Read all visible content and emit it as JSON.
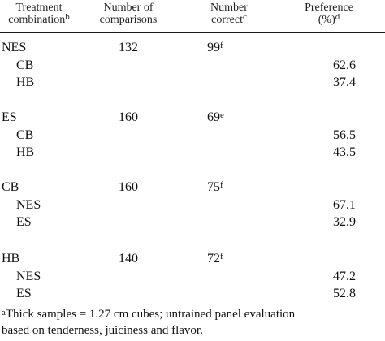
{
  "headers": {
    "treatment_line1": "Treatment",
    "treatment_line2": "combination",
    "treatment_sup": "b",
    "comparisons_line1": "Number of",
    "comparisons_line2": "comparisons",
    "correct_line1": "Number",
    "correct_line2": "correct",
    "correct_sup": "c",
    "preference_line1": "Preference",
    "preference_line2": "(%)",
    "preference_sup": "d"
  },
  "groups": [
    {
      "name": "NES",
      "comparisons": "132",
      "correct": "99",
      "correct_sup": "f",
      "rows": [
        {
          "name": "CB",
          "preference": "62.6"
        },
        {
          "name": "HB",
          "preference": "37.4"
        }
      ]
    },
    {
      "name": "ES",
      "comparisons": "160",
      "correct": "69",
      "correct_sup": "e",
      "rows": [
        {
          "name": "CB",
          "preference": "56.5"
        },
        {
          "name": "HB",
          "preference": "43.5"
        }
      ]
    },
    {
      "name": "CB",
      "comparisons": "160",
      "correct": "75",
      "correct_sup": "f",
      "rows": [
        {
          "name": "NES",
          "preference": "67.1"
        },
        {
          "name": "ES",
          "preference": "32.9"
        }
      ]
    },
    {
      "name": "HB",
      "comparisons": "140",
      "correct": "72",
      "correct_sup": "f",
      "rows": [
        {
          "name": "NES",
          "preference": "47.2"
        },
        {
          "name": "ES",
          "preference": "52.8"
        }
      ]
    }
  ],
  "footnote": {
    "marker": "a",
    "line1": "Thick samples = 1.27 cm cubes; untrained panel evaluation",
    "line2": "based on tenderness, juiciness and flavor."
  }
}
